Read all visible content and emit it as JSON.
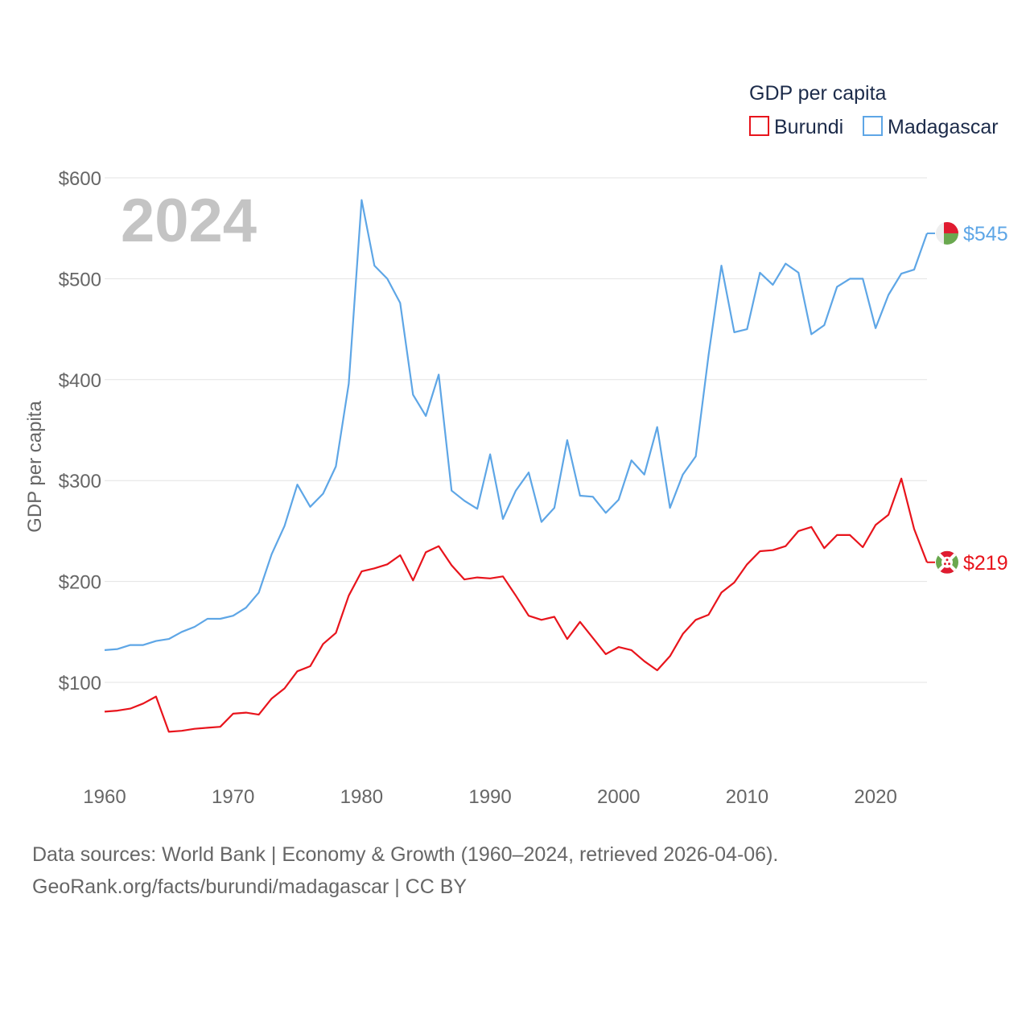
{
  "chart_data": {
    "type": "line",
    "year_label": "2024",
    "ylabel": "GDP per capita",
    "legend_title": "GDP per capita",
    "xlim": [
      1960,
      2024
    ],
    "ylim": [
      40,
      600
    ],
    "xticks": [
      1960,
      1970,
      1980,
      1990,
      2000,
      2010,
      2020
    ],
    "xtick_labels": [
      "1960",
      "1970",
      "1980",
      "1990",
      "2000",
      "2010",
      "2020"
    ],
    "yticks": [
      100,
      200,
      300,
      400,
      500,
      600
    ],
    "ytick_labels": [
      "$100",
      "$200",
      "$300",
      "$400",
      "$500",
      "$600"
    ],
    "grid": true,
    "series": [
      {
        "name": "Burundi",
        "color": "#e8141c",
        "end_label": "$219",
        "flag": "burundi-flag-icon",
        "x": [
          1960,
          1961,
          1962,
          1963,
          1964,
          1965,
          1966,
          1967,
          1968,
          1969,
          1970,
          1971,
          1972,
          1973,
          1974,
          1975,
          1976,
          1977,
          1978,
          1979,
          1980,
          1981,
          1982,
          1983,
          1984,
          1985,
          1986,
          1987,
          1988,
          1989,
          1990,
          1991,
          1992,
          1993,
          1994,
          1995,
          1996,
          1997,
          1998,
          1999,
          2000,
          2001,
          2002,
          2003,
          2004,
          2005,
          2006,
          2007,
          2008,
          2009,
          2010,
          2011,
          2012,
          2013,
          2014,
          2015,
          2016,
          2017,
          2018,
          2019,
          2020,
          2021,
          2022,
          2023,
          2024
        ],
        "values": [
          71,
          72,
          74,
          79,
          86,
          51,
          52,
          54,
          55,
          56,
          69,
          70,
          68,
          84,
          94,
          111,
          116,
          138,
          149,
          186,
          210,
          213,
          217,
          226,
          201,
          229,
          235,
          216,
          202,
          204,
          203,
          205,
          186,
          166,
          162,
          165,
          143,
          160,
          144,
          128,
          135,
          132,
          121,
          112,
          126,
          148,
          162,
          167,
          189,
          199,
          217,
          230,
          231,
          235,
          250,
          254,
          233,
          246,
          246,
          234,
          256,
          266,
          302,
          252,
          219
        ]
      },
      {
        "name": "Madagascar",
        "color": "#5ea6e6",
        "end_label": "$545",
        "flag": "madagascar-flag-icon",
        "x": [
          1960,
          1961,
          1962,
          1963,
          1964,
          1965,
          1966,
          1967,
          1968,
          1969,
          1970,
          1971,
          1972,
          1973,
          1974,
          1975,
          1976,
          1977,
          1978,
          1979,
          1980,
          1981,
          1982,
          1983,
          1984,
          1985,
          1986,
          1987,
          1988,
          1989,
          1990,
          1991,
          1992,
          1993,
          1994,
          1995,
          1996,
          1997,
          1998,
          1999,
          2000,
          2001,
          2002,
          2003,
          2004,
          2005,
          2006,
          2007,
          2008,
          2009,
          2010,
          2011,
          2012,
          2013,
          2014,
          2015,
          2016,
          2017,
          2018,
          2019,
          2020,
          2021,
          2022,
          2023,
          2024
        ],
        "values": [
          132,
          133,
          137,
          137,
          141,
          143,
          150,
          155,
          163,
          163,
          166,
          174,
          189,
          227,
          255,
          296,
          274,
          287,
          314,
          396,
          578,
          513,
          500,
          476,
          385,
          364,
          405,
          290,
          280,
          272,
          326,
          262,
          290,
          308,
          259,
          273,
          340,
          285,
          284,
          268,
          281,
          320,
          306,
          353,
          273,
          306,
          324,
          424,
          513,
          447,
          450,
          506,
          494,
          515,
          506,
          445,
          454,
          492,
          500,
          500,
          451,
          484,
          505,
          509,
          545
        ]
      }
    ]
  },
  "footer": {
    "line1": "Data sources: World Bank | Economy & Growth (1960–2024, retrieved 2026-04-06).",
    "line2": "GeoRank.org/facts/burundi/madagascar | CC BY"
  }
}
